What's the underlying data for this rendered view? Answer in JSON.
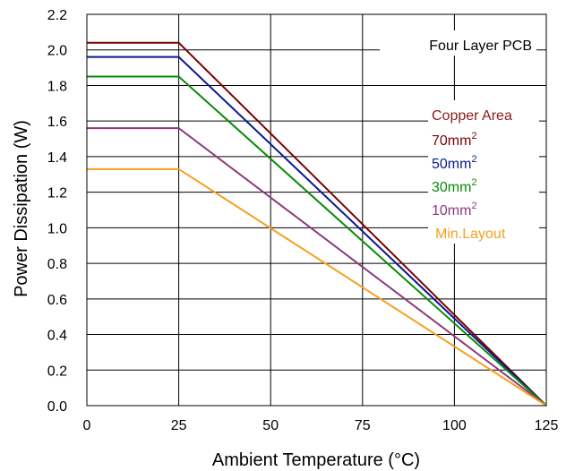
{
  "chart_data": {
    "type": "line",
    "xlabel": "Ambient Temperature (°C)",
    "ylabel": "Power Dissipation (W)",
    "xlim": [
      0,
      125
    ],
    "ylim": [
      0,
      2.2
    ],
    "xticks": [
      0,
      25,
      50,
      75,
      100,
      125
    ],
    "yticks": [
      0.0,
      0.2,
      0.4,
      0.6,
      0.8,
      1.0,
      1.2,
      1.4,
      1.6,
      1.8,
      2.0,
      2.2
    ],
    "ytick_labels": [
      "0.0",
      "0.2",
      "0.4",
      "0.6",
      "0.8",
      "1.0",
      "1.2",
      "1.4",
      "1.6",
      "1.8",
      "2.0",
      "2.2"
    ],
    "grid": true,
    "annotation": "Four Layer PCB",
    "legend_title": "Copper Area",
    "legend_title_color": "#8B1A1A",
    "legend_placement": "right",
    "series": [
      {
        "name": "70mm",
        "sup": "2",
        "color": "#7B0000",
        "x": [
          0,
          25,
          125
        ],
        "y": [
          2.04,
          2.04,
          0
        ]
      },
      {
        "name": "50mm",
        "sup": "2",
        "color": "#0A1A8C",
        "x": [
          0,
          25,
          125
        ],
        "y": [
          1.96,
          1.96,
          0
        ]
      },
      {
        "name": "30mm",
        "sup": "2",
        "color": "#0A8A0A",
        "x": [
          0,
          25,
          125
        ],
        "y": [
          1.85,
          1.85,
          0
        ]
      },
      {
        "name": "10mm",
        "sup": "2",
        "color": "#8B3A7A",
        "x": [
          0,
          25,
          125
        ],
        "y": [
          1.56,
          1.56,
          0
        ]
      },
      {
        "name": "Min.Layout",
        "sup": "",
        "color": "#F5A020",
        "x": [
          0,
          25,
          125
        ],
        "y": [
          1.33,
          1.33,
          0
        ]
      }
    ]
  }
}
